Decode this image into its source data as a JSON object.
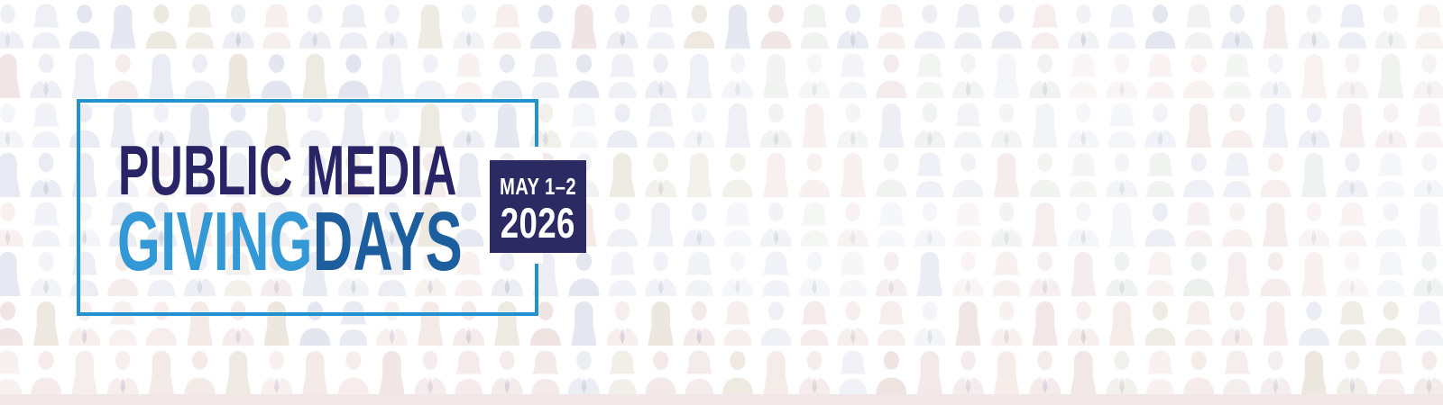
{
  "banner": {
    "logo": {
      "line1": "PUBLIC MEDIA",
      "line2_part1": "GIVING",
      "line2_part2": "DAYS"
    },
    "date_badge": {
      "line1": "MAY 1–2",
      "line2": "2026"
    },
    "colors": {
      "navy": "#282465",
      "badge_navy": "#2c2a63",
      "light_blue": "#3398d6",
      "medium_blue": "#1d5f9e",
      "frame_blue": "#2191d0",
      "bottom_strip": "#f2e7e8"
    },
    "background": {
      "pattern": "crowd-people-silhouettes",
      "icon_variants": [
        "man-suit-tie",
        "man-plain",
        "woman-bob-hair",
        "woman-long-hair"
      ],
      "palette_blue": [
        "#e2e5ef",
        "#e8eaf2",
        "#edeff5"
      ],
      "palette_pink": [
        "#f0e4e3",
        "#f4eae8"
      ],
      "palette_green": [
        "#e4eae4",
        "#eaeee9"
      ],
      "palette_tan": [
        "#ece8df"
      ]
    }
  }
}
